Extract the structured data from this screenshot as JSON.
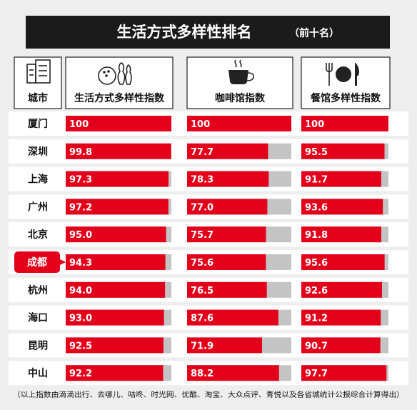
{
  "title": "生活方式多样性排名",
  "title_suffix": "（前十名）",
  "footnote": "（以上指数由滴滴出行、去哪儿、咕咚、时光网、优酷、淘宝、大众点评、青悦以及各省城统计公报综合计算得出）",
  "icons": {
    "city": "building-icon",
    "lifestyle": "bowling-icon",
    "coffee": "coffee-cup-icon",
    "restaurant": "fork-plate-knife-icon"
  },
  "colors": {
    "bar": "#e3001b",
    "track": "#c4c4c4",
    "title_bg": "#1b1b1b"
  },
  "highlight_city": "成都",
  "chart_data": {
    "type": "bar",
    "orientation": "horizontal",
    "categories": [
      "厦门",
      "深圳",
      "上海",
      "广州",
      "北京",
      "成都",
      "杭州",
      "海口",
      "昆明",
      "中山"
    ],
    "category_header": "城市",
    "series": [
      {
        "name": "生活方式多样性指数",
        "values": [
          100,
          99.8,
          97.3,
          97.2,
          95.0,
          94.3,
          94.0,
          93.0,
          92.5,
          92.2
        ]
      },
      {
        "name": "咖啡馆指数",
        "values": [
          100,
          77.7,
          78.3,
          77.0,
          75.7,
          75.6,
          76.5,
          87.6,
          71.9,
          88.2
        ]
      },
      {
        "name": "餐馆多样性指数",
        "values": [
          100,
          95.5,
          91.7,
          93.6,
          91.8,
          95.6,
          92.6,
          91.2,
          90.7,
          97.7
        ]
      }
    ],
    "value_labels": [
      [
        "100",
        "99.8",
        "97.3",
        "97.2",
        "95.0",
        "94.3",
        "94.0",
        "93.0",
        "92.5",
        "92.2"
      ],
      [
        "100",
        "77.7",
        "78.3",
        "77.0",
        "75.7",
        "75.6",
        "76.5",
        "87.6",
        "71.9",
        "88.2"
      ],
      [
        "100",
        "95.5",
        "91.7",
        "93.6",
        "91.8",
        "95.6",
        "92.6",
        "91.2",
        "90.7",
        "97.7"
      ]
    ],
    "xlim": [
      0,
      100
    ]
  }
}
